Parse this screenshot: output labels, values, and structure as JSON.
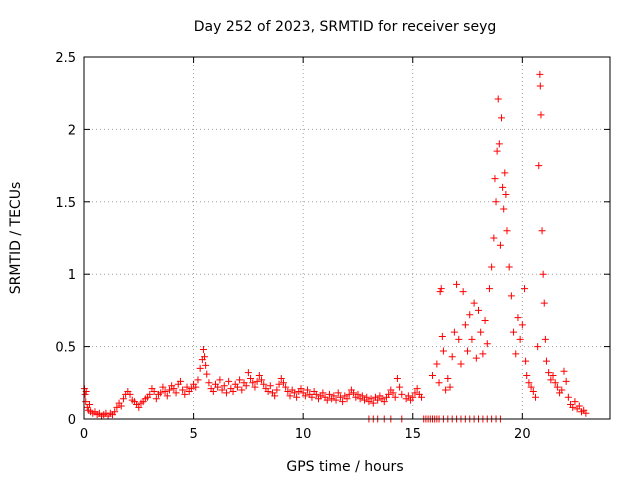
{
  "chart_data": {
    "type": "scatter",
    "title": "Day 252 of 2023, SRMTID for receiver seyg",
    "xlabel": "GPS time / hours",
    "ylabel": "SRMTID / TECUs",
    "xlim": [
      0,
      24
    ],
    "ylim": [
      0,
      2.5
    ],
    "xticks": [
      0,
      5,
      10,
      15,
      20
    ],
    "yticks": [
      0,
      0.5,
      1,
      1.5,
      2,
      2.5
    ],
    "xtick_labels": [
      "0",
      "5",
      "10",
      "15",
      "20"
    ],
    "ytick_labels": [
      "0",
      "0.5",
      "1",
      "1.5",
      "2",
      "2.5"
    ],
    "grid": true,
    "marker": "+",
    "color": "#ff0000",
    "series": [
      {
        "name": "seyg",
        "points": [
          [
            0.02,
            0.21
          ],
          [
            0.05,
            0.17
          ],
          [
            0.08,
            0.12
          ],
          [
            0.1,
            0.19
          ],
          [
            0.15,
            0.08
          ],
          [
            0.2,
            0.06
          ],
          [
            0.25,
            0.1
          ],
          [
            0.3,
            0.05
          ],
          [
            0.4,
            0.04
          ],
          [
            0.5,
            0.05
          ],
          [
            0.6,
            0.03
          ],
          [
            0.7,
            0.04
          ],
          [
            0.8,
            0.02
          ],
          [
            0.9,
            0.03
          ],
          [
            1.0,
            0.04
          ],
          [
            1.1,
            0.02
          ],
          [
            1.2,
            0.04
          ],
          [
            1.3,
            0.03
          ],
          [
            1.4,
            0.05
          ],
          [
            1.5,
            0.08
          ],
          [
            1.6,
            0.11
          ],
          [
            1.7,
            0.09
          ],
          [
            1.8,
            0.14
          ],
          [
            1.9,
            0.17
          ],
          [
            2.0,
            0.19
          ],
          [
            2.1,
            0.17
          ],
          [
            2.2,
            0.13
          ],
          [
            2.3,
            0.12
          ],
          [
            2.4,
            0.1
          ],
          [
            2.5,
            0.08
          ],
          [
            2.6,
            0.11
          ],
          [
            2.7,
            0.12
          ],
          [
            2.8,
            0.14
          ],
          [
            2.9,
            0.15
          ],
          [
            3.0,
            0.17
          ],
          [
            3.1,
            0.21
          ],
          [
            3.2,
            0.19
          ],
          [
            3.3,
            0.14
          ],
          [
            3.4,
            0.17
          ],
          [
            3.5,
            0.18
          ],
          [
            3.6,
            0.22
          ],
          [
            3.7,
            0.19
          ],
          [
            3.8,
            0.16
          ],
          [
            3.9,
            0.2
          ],
          [
            4.0,
            0.23
          ],
          [
            4.1,
            0.21
          ],
          [
            4.2,
            0.18
          ],
          [
            4.3,
            0.24
          ],
          [
            4.4,
            0.26
          ],
          [
            4.5,
            0.2
          ],
          [
            4.6,
            0.17
          ],
          [
            4.7,
            0.22
          ],
          [
            4.8,
            0.19
          ],
          [
            4.9,
            0.21
          ],
          [
            5.0,
            0.24
          ],
          [
            5.1,
            0.22
          ],
          [
            5.2,
            0.27
          ],
          [
            5.3,
            0.35
          ],
          [
            5.4,
            0.41
          ],
          [
            5.45,
            0.48
          ],
          [
            5.5,
            0.43
          ],
          [
            5.55,
            0.37
          ],
          [
            5.6,
            0.31
          ],
          [
            5.7,
            0.25
          ],
          [
            5.8,
            0.21
          ],
          [
            5.9,
            0.19
          ],
          [
            6.0,
            0.24
          ],
          [
            6.1,
            0.22
          ],
          [
            6.2,
            0.27
          ],
          [
            6.3,
            0.2
          ],
          [
            6.4,
            0.23
          ],
          [
            6.5,
            0.18
          ],
          [
            6.6,
            0.26
          ],
          [
            6.7,
            0.21
          ],
          [
            6.8,
            0.19
          ],
          [
            6.9,
            0.24
          ],
          [
            7.0,
            0.22
          ],
          [
            7.1,
            0.27
          ],
          [
            7.2,
            0.2
          ],
          [
            7.3,
            0.25
          ],
          [
            7.4,
            0.23
          ],
          [
            7.5,
            0.32
          ],
          [
            7.6,
            0.28
          ],
          [
            7.7,
            0.25
          ],
          [
            7.8,
            0.22
          ],
          [
            7.9,
            0.26
          ],
          [
            8.0,
            0.3
          ],
          [
            8.1,
            0.27
          ],
          [
            8.2,
            0.24
          ],
          [
            8.3,
            0.21
          ],
          [
            8.4,
            0.19
          ],
          [
            8.5,
            0.23
          ],
          [
            8.6,
            0.18
          ],
          [
            8.7,
            0.16
          ],
          [
            8.8,
            0.2
          ],
          [
            8.9,
            0.24
          ],
          [
            9.0,
            0.28
          ],
          [
            9.1,
            0.25
          ],
          [
            9.2,
            0.22
          ],
          [
            9.3,
            0.19
          ],
          [
            9.4,
            0.16
          ],
          [
            9.5,
            0.2
          ],
          [
            9.6,
            0.18
          ],
          [
            9.7,
            0.15
          ],
          [
            9.8,
            0.19
          ],
          [
            9.9,
            0.21
          ],
          [
            10.0,
            0.18
          ],
          [
            10.1,
            0.16
          ],
          [
            10.2,
            0.2
          ],
          [
            10.3,
            0.17
          ],
          [
            10.4,
            0.15
          ],
          [
            10.5,
            0.19
          ],
          [
            10.6,
            0.17
          ],
          [
            10.7,
            0.14
          ],
          [
            10.8,
            0.16
          ],
          [
            10.9,
            0.18
          ],
          [
            11.0,
            0.15
          ],
          [
            11.1,
            0.13
          ],
          [
            11.2,
            0.17
          ],
          [
            11.3,
            0.14
          ],
          [
            11.4,
            0.16
          ],
          [
            11.5,
            0.13
          ],
          [
            11.6,
            0.18
          ],
          [
            11.7,
            0.15
          ],
          [
            11.8,
            0.12
          ],
          [
            11.9,
            0.16
          ],
          [
            12.0,
            0.14
          ],
          [
            12.1,
            0.17
          ],
          [
            12.2,
            0.2
          ],
          [
            12.3,
            0.18
          ],
          [
            12.4,
            0.15
          ],
          [
            12.5,
            0.17
          ],
          [
            12.6,
            0.14
          ],
          [
            12.7,
            0.16
          ],
          [
            12.8,
            0.13
          ],
          [
            12.9,
            0.15
          ],
          [
            13.0,
            0.12
          ],
          [
            13.1,
            0.14
          ],
          [
            13.2,
            0.11
          ],
          [
            13.3,
            0.15
          ],
          [
            13.4,
            0.13
          ],
          [
            13.5,
            0.16
          ],
          [
            13.6,
            0.14
          ],
          [
            13.7,
            0.12
          ],
          [
            13.8,
            0.15
          ],
          [
            13.9,
            0.17
          ],
          [
            14.0,
            0.2
          ],
          [
            14.1,
            0.18
          ],
          [
            14.2,
            0.15
          ],
          [
            14.3,
            0.28
          ],
          [
            14.4,
            0.22
          ],
          [
            14.5,
            0.17
          ],
          [
            14.7,
            0.14
          ],
          [
            14.8,
            0.16
          ],
          [
            14.9,
            0.13
          ],
          [
            15.0,
            0.15
          ],
          [
            15.1,
            0.18
          ],
          [
            15.2,
            0.21
          ],
          [
            15.3,
            0.17
          ],
          [
            15.4,
            0.15
          ],
          [
            13.0,
            0.0
          ],
          [
            13.2,
            0.0
          ],
          [
            13.4,
            0.0
          ],
          [
            13.7,
            0.0
          ],
          [
            14.0,
            0.0
          ],
          [
            14.5,
            0.0
          ],
          [
            15.5,
            0.0
          ],
          [
            15.6,
            0.0
          ],
          [
            15.7,
            0.0
          ],
          [
            15.8,
            0.0
          ],
          [
            15.9,
            0.0
          ],
          [
            16.0,
            0.0
          ],
          [
            16.1,
            0.0
          ],
          [
            16.2,
            0.0
          ],
          [
            16.4,
            0.0
          ],
          [
            16.6,
            0.0
          ],
          [
            16.8,
            0.0
          ],
          [
            17.0,
            0.0
          ],
          [
            17.2,
            0.0
          ],
          [
            17.4,
            0.0
          ],
          [
            17.6,
            0.0
          ],
          [
            17.8,
            0.0
          ],
          [
            18.0,
            0.0
          ],
          [
            18.2,
            0.0
          ],
          [
            18.4,
            0.0
          ],
          [
            18.6,
            0.0
          ],
          [
            18.8,
            0.0
          ],
          [
            19.0,
            0.0
          ],
          [
            15.9,
            0.3
          ],
          [
            16.1,
            0.38
          ],
          [
            16.2,
            0.25
          ],
          [
            16.25,
            0.88
          ],
          [
            16.3,
            0.9
          ],
          [
            16.35,
            0.57
          ],
          [
            16.4,
            0.47
          ],
          [
            16.5,
            0.2
          ],
          [
            16.6,
            0.28
          ],
          [
            16.7,
            0.22
          ],
          [
            16.8,
            0.43
          ],
          [
            16.9,
            0.6
          ],
          [
            17.0,
            0.93
          ],
          [
            17.1,
            0.55
          ],
          [
            17.2,
            0.38
          ],
          [
            17.3,
            0.88
          ],
          [
            17.4,
            0.65
          ],
          [
            17.5,
            0.47
          ],
          [
            17.6,
            0.72
          ],
          [
            17.7,
            0.55
          ],
          [
            17.8,
            0.8
          ],
          [
            17.9,
            0.42
          ],
          [
            18.0,
            0.75
          ],
          [
            18.1,
            0.6
          ],
          [
            18.2,
            0.45
          ],
          [
            18.3,
            0.68
          ],
          [
            18.4,
            0.52
          ],
          [
            18.5,
            0.9
          ],
          [
            18.6,
            1.05
          ],
          [
            18.7,
            1.25
          ],
          [
            18.75,
            1.66
          ],
          [
            18.8,
            1.5
          ],
          [
            18.85,
            1.85
          ],
          [
            18.9,
            2.21
          ],
          [
            18.95,
            1.9
          ],
          [
            19.0,
            1.2
          ],
          [
            19.05,
            2.08
          ],
          [
            19.1,
            1.6
          ],
          [
            19.15,
            1.45
          ],
          [
            19.2,
            1.7
          ],
          [
            19.25,
            1.55
          ],
          [
            19.3,
            1.3
          ],
          [
            19.4,
            1.05
          ],
          [
            19.5,
            0.85
          ],
          [
            19.6,
            0.6
          ],
          [
            19.7,
            0.45
          ],
          [
            19.8,
            0.7
          ],
          [
            19.9,
            0.55
          ],
          [
            20.0,
            0.65
          ],
          [
            20.1,
            0.9
          ],
          [
            20.15,
            0.4
          ],
          [
            20.2,
            0.3
          ],
          [
            20.3,
            0.25
          ],
          [
            20.4,
            0.22
          ],
          [
            20.5,
            0.19
          ],
          [
            20.6,
            0.15
          ],
          [
            20.7,
            0.5
          ],
          [
            20.75,
            1.75
          ],
          [
            20.8,
            2.38
          ],
          [
            20.82,
            2.3
          ],
          [
            20.85,
            2.1
          ],
          [
            20.9,
            1.3
          ],
          [
            20.95,
            1.0
          ],
          [
            21.0,
            0.8
          ],
          [
            21.05,
            0.55
          ],
          [
            21.1,
            0.4
          ],
          [
            21.2,
            0.32
          ],
          [
            21.3,
            0.27
          ],
          [
            21.4,
            0.3
          ],
          [
            21.5,
            0.25
          ],
          [
            21.6,
            0.22
          ],
          [
            21.7,
            0.18
          ],
          [
            21.8,
            0.2
          ],
          [
            21.9,
            0.33
          ],
          [
            22.0,
            0.26
          ],
          [
            22.1,
            0.15
          ],
          [
            22.2,
            0.1
          ],
          [
            22.3,
            0.08
          ],
          [
            22.4,
            0.12
          ],
          [
            22.5,
            0.07
          ],
          [
            22.6,
            0.09
          ],
          [
            22.7,
            0.05
          ],
          [
            22.8,
            0.06
          ],
          [
            22.9,
            0.04
          ]
        ]
      }
    ]
  }
}
